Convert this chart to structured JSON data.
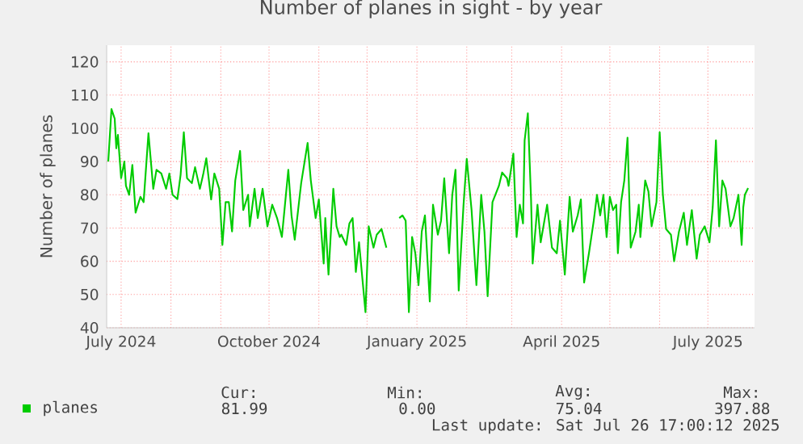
{
  "chart_data": {
    "type": "line",
    "title": "Number of planes in sight - by year",
    "ylabel": "Number of planes",
    "xlim": [
      "2024-06-22",
      "2025-07-30"
    ],
    "ylim": [
      40,
      125
    ],
    "xticks": [
      {
        "value": "2024-07-01",
        "label": "July 2024"
      },
      {
        "value": "2024-08-01",
        "label": null
      },
      {
        "value": "2024-09-01",
        "label": null
      },
      {
        "value": "2024-10-01",
        "label": "October 2024"
      },
      {
        "value": "2024-11-01",
        "label": null
      },
      {
        "value": "2024-12-01",
        "label": null
      },
      {
        "value": "2025-01-01",
        "label": "January 2025"
      },
      {
        "value": "2025-02-01",
        "label": null
      },
      {
        "value": "2025-03-01",
        "label": null
      },
      {
        "value": "2025-04-01",
        "label": "April 2025"
      },
      {
        "value": "2025-05-01",
        "label": null
      },
      {
        "value": "2025-06-01",
        "label": null
      },
      {
        "value": "2025-07-01",
        "label": "July 2025"
      }
    ],
    "yticks": [
      40,
      50,
      60,
      70,
      80,
      90,
      100,
      110,
      120
    ],
    "grid": true,
    "legend": "bottom left",
    "marker": "none",
    "line_style": "solid",
    "x": [
      "2024-06-23",
      "2024-06-25",
      "2024-06-27",
      "2024-06-28",
      "2024-06-29",
      "2024-07-01",
      "2024-07-03",
      "2024-07-04",
      "2024-07-06",
      "2024-07-08",
      "2024-07-10",
      "2024-07-13",
      "2024-07-15",
      "2024-07-18",
      "2024-07-21",
      "2024-07-23",
      "2024-07-26",
      "2024-07-29",
      "2024-07-31",
      "2024-08-02",
      "2024-08-05",
      "2024-08-07",
      "2024-08-09",
      "2024-08-11",
      "2024-08-14",
      "2024-08-16",
      "2024-08-19",
      "2024-08-21",
      "2024-08-23",
      "2024-08-26",
      "2024-08-28",
      "2024-08-31",
      "2024-09-02",
      "2024-09-04",
      "2024-09-06",
      "2024-09-08",
      "2024-09-10",
      "2024-09-13",
      "2024-09-15",
      "2024-09-18",
      "2024-09-19",
      "2024-09-22",
      "2024-09-24",
      "2024-09-27",
      "2024-09-30",
      "2024-10-03",
      "2024-10-06",
      "2024-10-09",
      "2024-10-13",
      "2024-10-15",
      "2024-10-17",
      "2024-10-21",
      "2024-10-25",
      "2024-10-27",
      "2024-10-30",
      "2024-11-01",
      "2024-11-04",
      "2024-11-05",
      "2024-11-07",
      "2024-11-10",
      "2024-11-12",
      "2024-11-14",
      "2024-11-15",
      "2024-11-18",
      "2024-11-20",
      "2024-11-22",
      "2024-11-24",
      "2024-11-26",
      "2024-11-30",
      "2024-12-02",
      "2024-12-05",
      "2024-12-07",
      "2024-12-10",
      "2024-12-13",
      "2024-12-16",
      "2024-12-21",
      "2024-12-23",
      "2024-12-25",
      "2024-12-27",
      "2024-12-29",
      "2024-12-31",
      "2025-01-02",
      "2025-01-04",
      "2025-01-06",
      "2025-01-09",
      "2025-01-11",
      "2025-01-14",
      "2025-01-16",
      "2025-01-18",
      "2025-01-21",
      "2025-01-23",
      "2025-01-25",
      "2025-01-27",
      "2025-01-30",
      "2025-02-01",
      "2025-02-04",
      "2025-02-07",
      "2025-02-10",
      "2025-02-12",
      "2025-02-14",
      "2025-02-17",
      "2025-02-21",
      "2025-02-23",
      "2025-02-26",
      "2025-02-27",
      "2025-03-02",
      "2025-03-04",
      "2025-03-06",
      "2025-03-08",
      "2025-03-09",
      "2025-03-11",
      "2025-03-13",
      "2025-03-14",
      "2025-03-17",
      "2025-03-19",
      "2025-03-23",
      "2025-03-26",
      "2025-03-29",
      "2025-03-31",
      "2025-04-03",
      "2025-04-06",
      "2025-04-08",
      "2025-04-11",
      "2025-04-13",
      "2025-04-15",
      "2025-04-18",
      "2025-04-21",
      "2025-04-23",
      "2025-04-25",
      "2025-04-27",
      "2025-04-29",
      "2025-05-01",
      "2025-05-03",
      "2025-05-05",
      "2025-05-06",
      "2025-05-08",
      "2025-05-10",
      "2025-05-12",
      "2025-05-14",
      "2025-05-17",
      "2025-05-19",
      "2025-05-20",
      "2025-05-23",
      "2025-05-25",
      "2025-05-27",
      "2025-05-30",
      "2025-06-01",
      "2025-06-03",
      "2025-06-05",
      "2025-06-08",
      "2025-06-10",
      "2025-06-13",
      "2025-06-16",
      "2025-06-18",
      "2025-06-21",
      "2025-06-24",
      "2025-06-26",
      "2025-06-29",
      "2025-07-02",
      "2025-07-04",
      "2025-07-06",
      "2025-07-08",
      "2025-07-10",
      "2025-07-12",
      "2025-07-15",
      "2025-07-17",
      "2025-07-20",
      "2025-07-21",
      "2025-07-22",
      "2025-07-23",
      "2025-07-24",
      "2025-07-26"
    ],
    "series": [
      {
        "name": "planes",
        "color": "#00cc00",
        "values": [
          90,
          105.8,
          102.9,
          94,
          98,
          85,
          90,
          82.7,
          80,
          89,
          74.6,
          79.4,
          77.8,
          98.5,
          81.8,
          87.5,
          86.4,
          81.8,
          86.4,
          80,
          78.7,
          86,
          98.8,
          85,
          83.5,
          88.3,
          81.8,
          86,
          91,
          78.6,
          86.4,
          81.8,
          64.9,
          77.8,
          77.8,
          69,
          84.3,
          93.2,
          75.4,
          80,
          70.5,
          81.8,
          73,
          81.8,
          70.5,
          77,
          73,
          67.3,
          87.5,
          73.8,
          66.5,
          83.5,
          95.6,
          84.3,
          73,
          78.6,
          59.3,
          73,
          56,
          81.8,
          70.5,
          67.3,
          68,
          64.9,
          71.4,
          73,
          56.8,
          65.7,
          44.7,
          70.5,
          64.1,
          68,
          69.7,
          64.1,
          null,
          73,
          73.8,
          72.2,
          44.7,
          67.3,
          62.4,
          52.8,
          68.9,
          73.8,
          47.9,
          77,
          68,
          72.2,
          85,
          62.4,
          80,
          87.5,
          51.2,
          77,
          90.8,
          75.4,
          52.8,
          80,
          68.9,
          49.5,
          77.8,
          82.7,
          86.7,
          85,
          82.7,
          92.4,
          67.3,
          77,
          71.4,
          96.4,
          104.5,
          78.6,
          59.3,
          77,
          65.7,
          77,
          64.1,
          62.4,
          72.2,
          56,
          79.4,
          68.9,
          73.8,
          78.6,
          53.6,
          62.4,
          72.2,
          80,
          73.8,
          80,
          67.3,
          79.4,
          75.4,
          77,
          62.4,
          77.8,
          84.3,
          97.2,
          64.1,
          68.9,
          77,
          67.3,
          84.3,
          81,
          70.5,
          77.8,
          98.8,
          80,
          69.7,
          68,
          60,
          68.9,
          74.6,
          64.9,
          75.4,
          60.8,
          68,
          70.5,
          65.7,
          76.2,
          96.4,
          70.5,
          84.3,
          81.8,
          70.5,
          73,
          80,
          72.2,
          64.9,
          76.2,
          80,
          82
        ]
      }
    ],
    "annotations": [
      "Cur:",
      "Min:",
      "Avg:",
      "Max:",
      "81.99",
      "0.00",
      "75.04",
      "397.88",
      "Last update: Sat Jul 26 17:00:12 2025"
    ]
  }
}
